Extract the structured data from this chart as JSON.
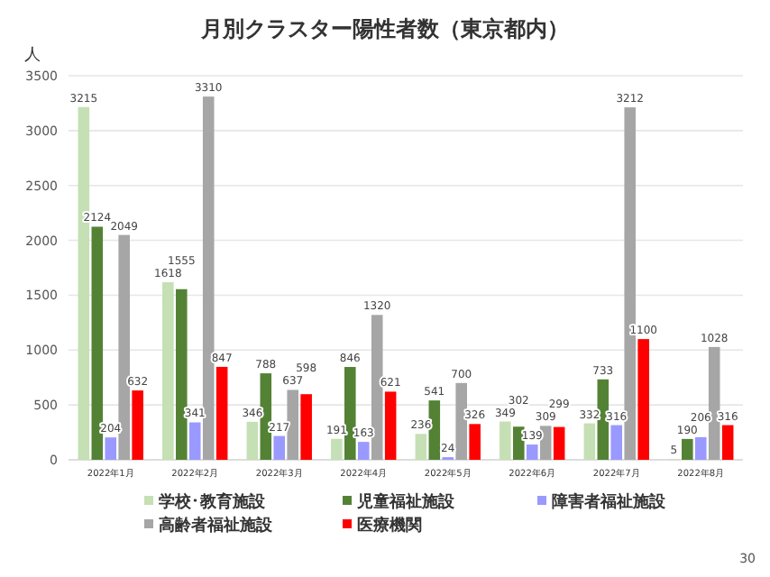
{
  "chart_data": {
    "type": "bar",
    "title": "月別クラスター陽性者数（東京都内）",
    "ylabel": "人",
    "categories": [
      "2022年1月",
      "2022年2月",
      "2022年3月",
      "2022年4月",
      "2022年5月",
      "2022年6月",
      "2022年7月",
      "2022年8月"
    ],
    "series": [
      {
        "name": "学校･教育施設",
        "color": "#c5e0b4",
        "values": [
          3215,
          1618,
          346,
          191,
          236,
          349,
          332,
          5
        ]
      },
      {
        "name": "児童福祉施設",
        "color": "#548235",
        "values": [
          2124,
          1555,
          788,
          846,
          541,
          302,
          733,
          190
        ]
      },
      {
        "name": "障害者福祉施設",
        "color": "#9999ff",
        "values": [
          204,
          341,
          217,
          163,
          24,
          139,
          316,
          206
        ]
      },
      {
        "name": "高齢者福祉施設",
        "color": "#a6a6a6",
        "values": [
          2049,
          3310,
          637,
          1320,
          700,
          309,
          3212,
          1028
        ]
      },
      {
        "name": "医療機関",
        "color": "#ff0000",
        "values": [
          632,
          847,
          598,
          621,
          326,
          299,
          1100,
          316
        ]
      }
    ],
    "ylim": [
      0,
      3500
    ],
    "yticks": [
      0,
      500,
      1000,
      1500,
      2000,
      2500,
      3000,
      3500
    ],
    "grid": "y",
    "legend": "bottom",
    "data_labels": true,
    "annotations": [
      "30"
    ]
  }
}
